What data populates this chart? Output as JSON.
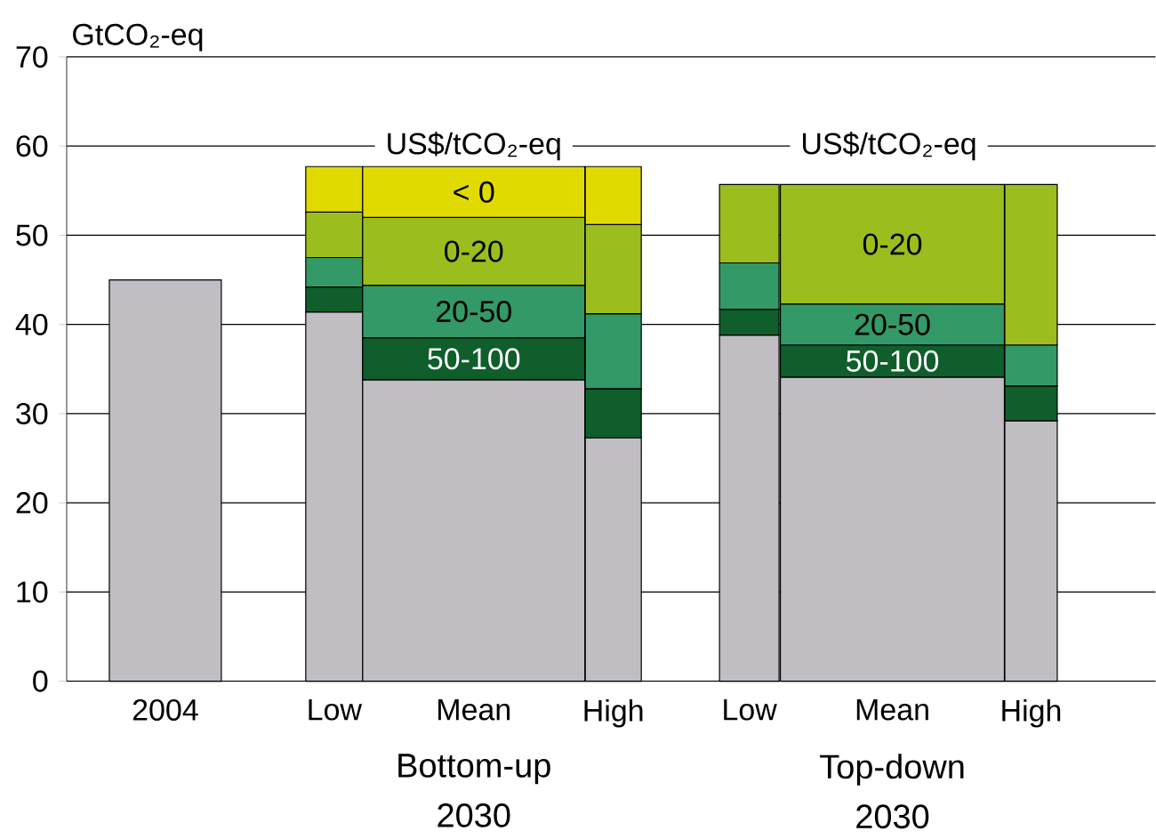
{
  "chart_data": {
    "type": "bar",
    "stacked": true,
    "ylabel": "GtCO₂-eq",
    "categories": [
      "2004",
      "Low",
      "Mean",
      "High",
      "Low",
      "Mean",
      "High"
    ],
    "ylim": [
      0,
      70
    ],
    "yticks": [
      0,
      10,
      20,
      30,
      40,
      50,
      60,
      70
    ],
    "grid": "y",
    "series": [
      {
        "color": "#c0bec3",
        "values": [
          45,
          41.4,
          33.8,
          27.3,
          38.8,
          34.1,
          29.2
        ]
      },
      {
        "name": "50-100",
        "color": "#0f5e2b",
        "values": [
          null,
          2.8,
          4.7,
          5.5,
          2.9,
          3.6,
          3.9
        ]
      },
      {
        "name": "20-50",
        "color": "#339966",
        "values": [
          null,
          3.3,
          5.9,
          8.4,
          5.2,
          4.6,
          4.6
        ]
      },
      {
        "name": "0-20",
        "color": "#9bbe1e",
        "values": [
          null,
          5.1,
          7.6,
          10.0,
          8.8,
          13.4,
          18.0
        ]
      },
      {
        "name": "< 0",
        "color": "#e0da00",
        "values": [
          null,
          5.1,
          5.7,
          6.5,
          null,
          null,
          null
        ]
      }
    ],
    "annotations": [
      "US$/tCO₂-eq",
      "US$/tCO₂-eq",
      "Bottom-up 2030",
      "Top-down 2030"
    ]
  }
}
